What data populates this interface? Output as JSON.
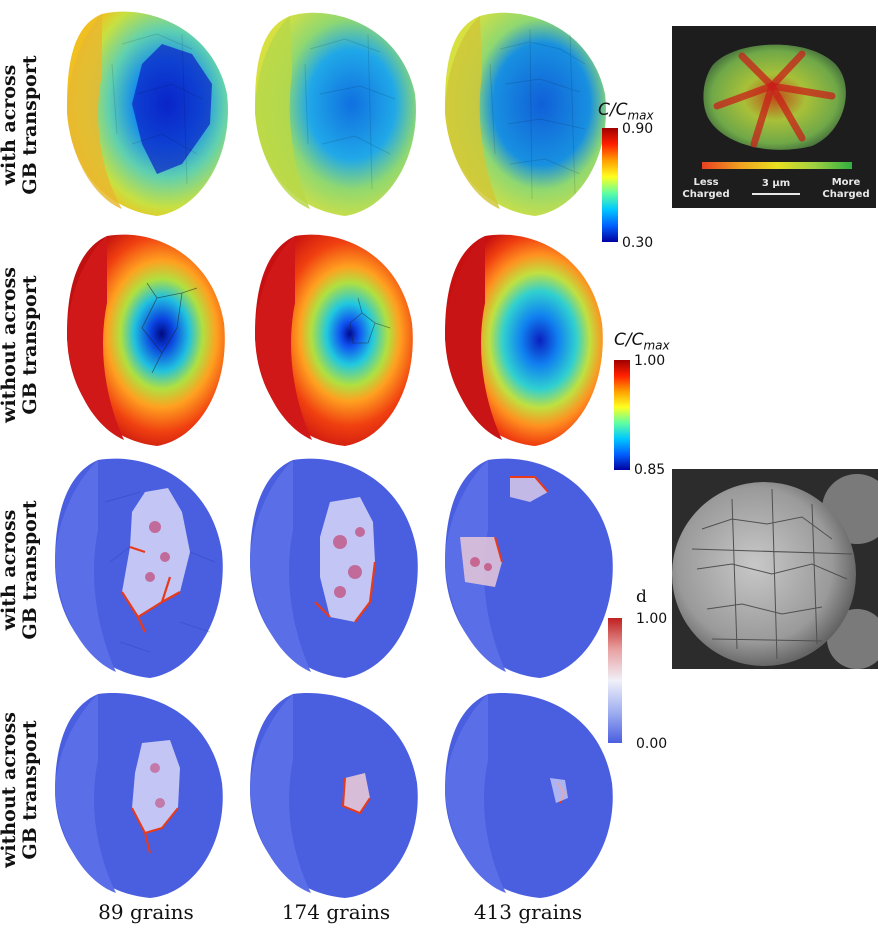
{
  "rows": [
    {
      "line1": "with across",
      "line2": "GB transport"
    },
    {
      "line1": "without across",
      "line2": "GB transport"
    },
    {
      "line1": "with across",
      "line2": "GB transport"
    },
    {
      "line1": "without across",
      "line2": "GB transport"
    }
  ],
  "columns": [
    "89 grains",
    "174 grains",
    "413 grains"
  ],
  "colorbars": {
    "c1": {
      "title_main": "C/C",
      "title_sub": "max",
      "max": "0.90",
      "min": "0.30"
    },
    "c2": {
      "title_main": "C/C",
      "title_sub": "max",
      "max": "1.00",
      "min": "0.85"
    },
    "d": {
      "title": "d",
      "max": "1.00",
      "min": "0.00"
    }
  },
  "inset_top": {
    "left_label_1": "Less",
    "left_label_2": "Charged",
    "scale_label": "3 μm",
    "right_label_1": "More",
    "right_label_2": "Charged"
  },
  "colors": {
    "concentration_low": "#0a14c8",
    "concentration_high": "#c80a0a",
    "damage_bg": "#4a5ee0",
    "damage_crack": "#e83a1a"
  }
}
